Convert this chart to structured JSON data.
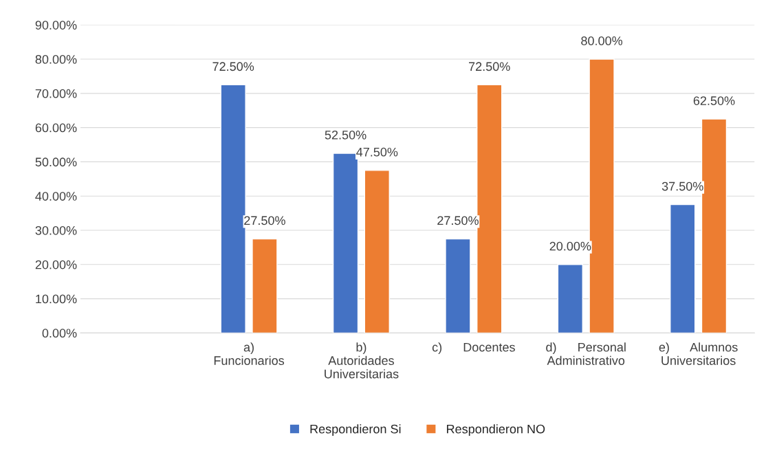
{
  "chart_data": {
    "type": "bar",
    "categories": [
      null,
      "a)\nFuncionarios",
      "b)\nAutoridades\nUniversitarias",
      "c)      Docentes",
      "d)      Personal\nAdministrativo",
      "e)      Alumnos\nUniversitarios"
    ],
    "series": [
      {
        "name": "Respondieron Si",
        "color": "#4472c4",
        "values": [
          null,
          72.5,
          52.5,
          27.5,
          20.0,
          37.5
        ],
        "value_labels": [
          null,
          "72.50%",
          "52.50%",
          "27.50%",
          "20.00%",
          "37.50%"
        ]
      },
      {
        "name": "Respondieron NO",
        "color": "#ed7d31",
        "values": [
          null,
          27.5,
          47.5,
          72.5,
          80.0,
          62.5
        ],
        "value_labels": [
          null,
          "27.50%",
          "47.50%",
          "72.50%",
          "80.00%",
          "62.50%"
        ]
      }
    ],
    "ylim": [
      0,
      90
    ],
    "yticks": [
      {
        "value": 0,
        "label": "0.00%"
      },
      {
        "value": 10,
        "label": "10.00%"
      },
      {
        "value": 20,
        "label": "20.00%"
      },
      {
        "value": 30,
        "label": "30.00%"
      },
      {
        "value": 40,
        "label": "40.00%"
      },
      {
        "value": 50,
        "label": "50.00%"
      },
      {
        "value": 60,
        "label": "60.00%"
      },
      {
        "value": 70,
        "label": "70.00%"
      },
      {
        "value": 80,
        "label": "80.00%"
      },
      {
        "value": 90,
        "label": "90.00%"
      }
    ],
    "grid": "y",
    "legend": "bottom"
  }
}
